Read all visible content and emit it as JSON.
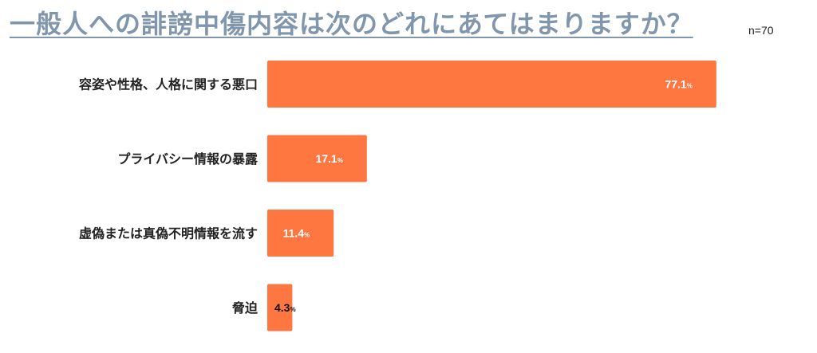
{
  "title": "一般人への誹謗中傷内容は次のどれにあてはまりますか？",
  "sample_size": "n=70",
  "colors": {
    "bar": "#fe7640",
    "title": "#7f96ad",
    "label_inside": "#ffffff",
    "label_outside": "#111111"
  },
  "chart_data": {
    "type": "bar",
    "orientation": "horizontal",
    "title": "一般人への誹謗中傷内容は次のどれにあてはまりますか？",
    "categories": [
      "容姿や性格、人格に関する悪口",
      "プライバシー情報の暴露",
      "虚偽または真偽不明情報を流す",
      "脅迫"
    ],
    "values": [
      77.1,
      17.1,
      11.4,
      4.3
    ],
    "value_labels": [
      "77.1",
      "17.1",
      "11.4",
      "4.3"
    ],
    "unit": "%",
    "xlim": [
      0,
      100
    ],
    "grid": false,
    "legend": "none"
  }
}
